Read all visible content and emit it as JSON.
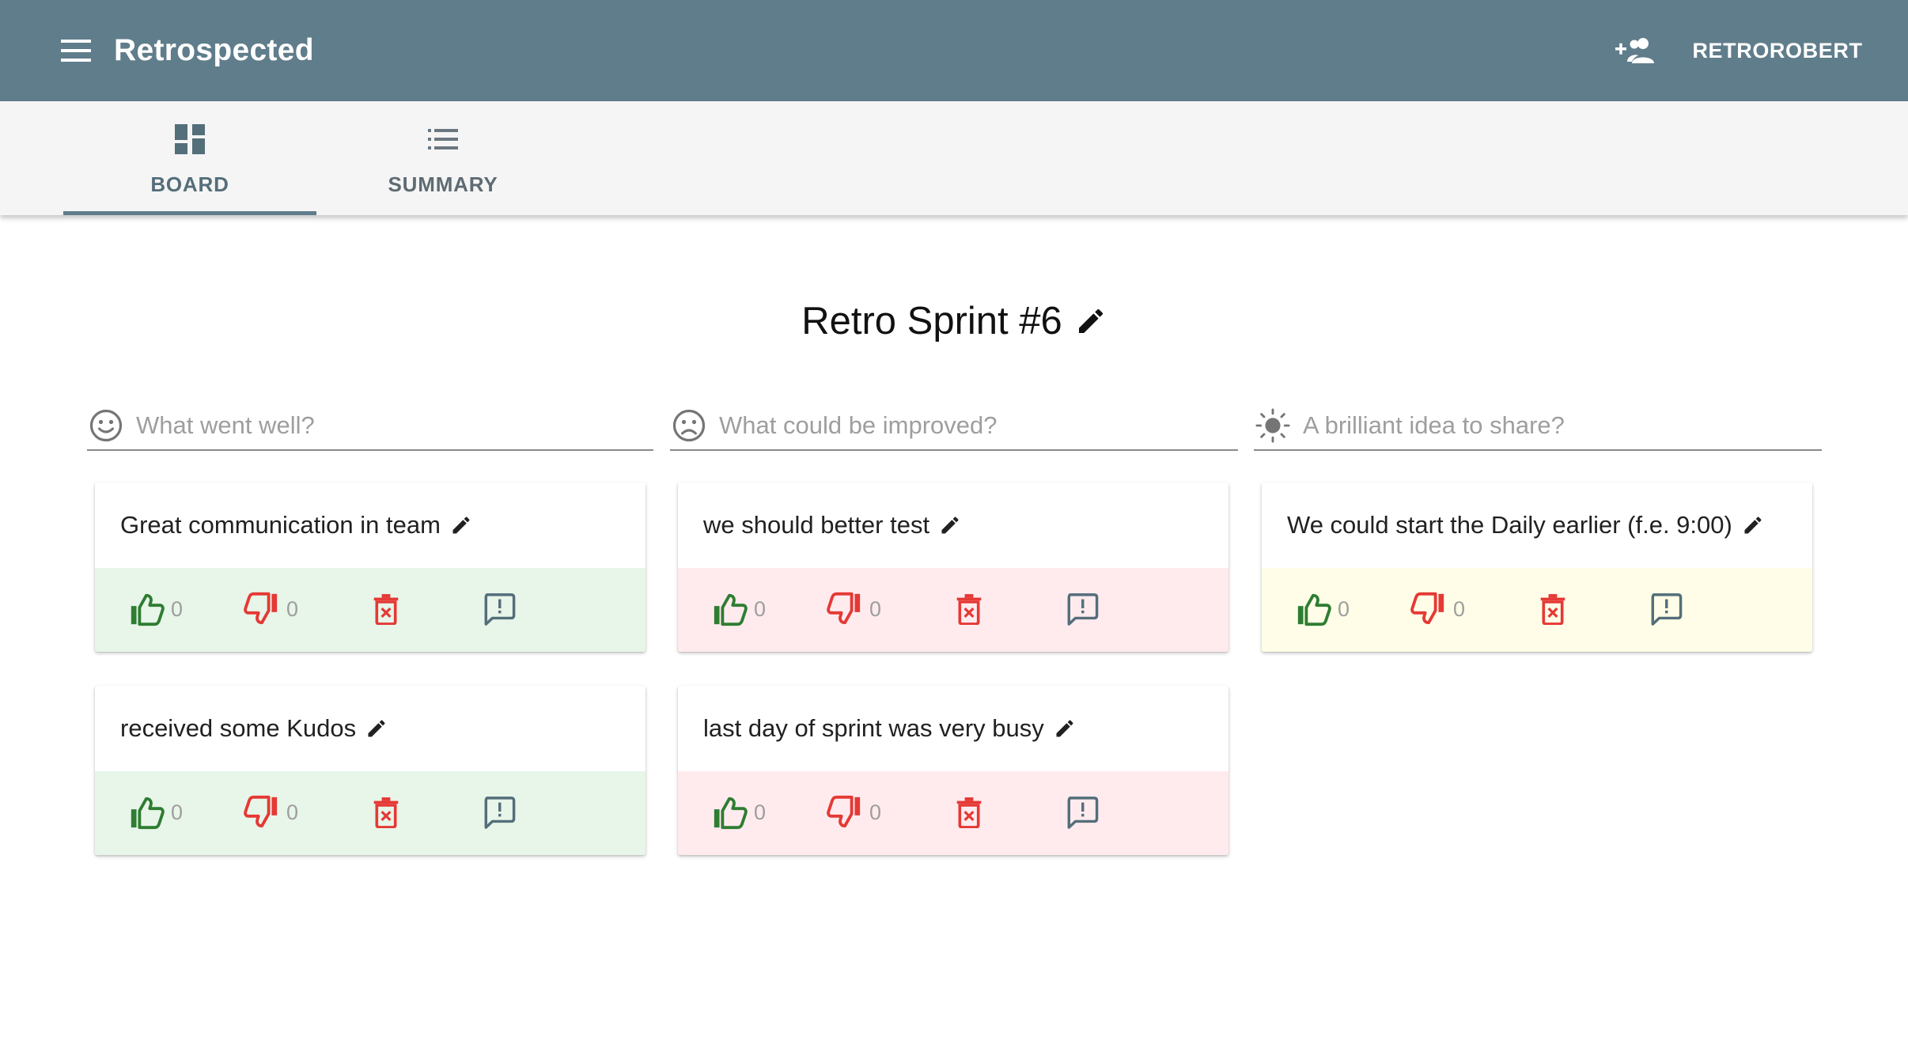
{
  "app": {
    "title": "Retrospected",
    "user_label": "RETROROBERT"
  },
  "tabs": [
    {
      "label": "BOARD",
      "active": true,
      "icon": "dashboard-icon"
    },
    {
      "label": "SUMMARY",
      "active": false,
      "icon": "list-icon"
    }
  ],
  "board": {
    "title": "Retro Sprint #6"
  },
  "columns": [
    {
      "placeholder": "What went well?",
      "icon": "smile-icon",
      "color": "#e8f5e9"
    },
    {
      "placeholder": "What could be improved?",
      "icon": "sad-icon",
      "color": "#ffebee"
    },
    {
      "placeholder": "A brilliant idea to share?",
      "icon": "sun-icon",
      "color": "#fffde7"
    }
  ],
  "posts": {
    "well": [
      {
        "text": "Great communication in team",
        "likes": "0",
        "dislikes": "0"
      },
      {
        "text": "received some Kudos",
        "likes": "0",
        "dislikes": "0"
      }
    ],
    "improve": [
      {
        "text": "we should better test",
        "likes": "0",
        "dislikes": "0"
      },
      {
        "text": "last day of sprint was very busy",
        "likes": "0",
        "dislikes": "0"
      }
    ],
    "ideas": [
      {
        "text": "We could start the Daily earlier (f.e. 9:00)",
        "likes": "0",
        "dislikes": "0"
      }
    ]
  },
  "colors": {
    "appbar": "#607d8b",
    "like": "#2e7d32",
    "dislike": "#e53935",
    "delete": "#e53935",
    "comment": "#546e7a"
  }
}
